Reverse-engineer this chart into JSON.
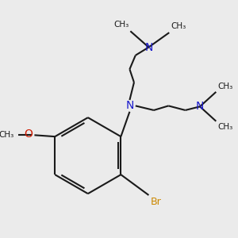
{
  "bg_color": "#ebebeb",
  "bond_color": "#1a1a1a",
  "N_color": "#1a1acc",
  "O_color": "#cc1a00",
  "Br_color": "#cc8800",
  "lw": 1.5,
  "figsize": [
    3.0,
    3.0
  ],
  "dpi": 100,
  "xlim": [
    0,
    300
  ],
  "ylim": [
    0,
    300
  ]
}
